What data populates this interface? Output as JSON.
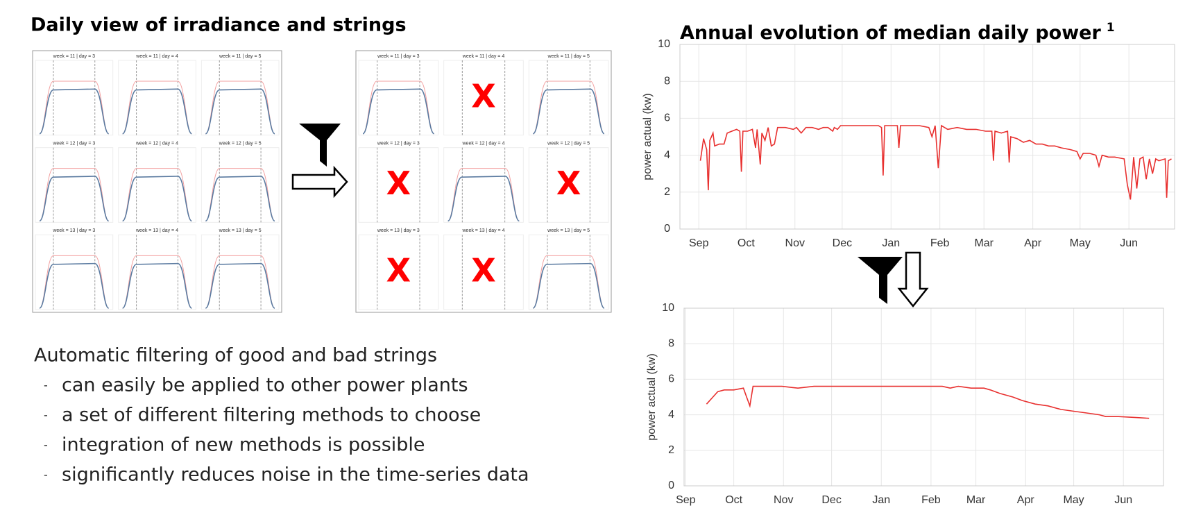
{
  "daily_view": {
    "title": "Daily view of irradiance and strings",
    "panels": [
      {
        "label": "week = 11 | day = 3"
      },
      {
        "label": "week = 11 | day = 4",
        "verdict": "X"
      },
      {
        "label": "week = 11 | day = 5"
      },
      {
        "label": "week = 12 | day = 3",
        "verdict": "X"
      },
      {
        "label": "week = 12 | day = 4"
      },
      {
        "label": "week = 12 | day = 5",
        "verdict": "X"
      },
      {
        "label": "week = 13 | day = 3",
        "verdict": "X"
      },
      {
        "label": "week = 13 | day = 4",
        "verdict": "X"
      },
      {
        "label": "week = 13 | day = 5"
      }
    ]
  },
  "summary": {
    "heading": "Automatic filtering of good and bad strings",
    "bullets": [
      "can easily be applied to other power plants",
      "a set of different filtering methods to choose",
      "integration of new methods is possible",
      "significantly reduces noise in the time-series data"
    ]
  },
  "chart_data": [
    {
      "type": "line",
      "title": "Annual evolution of median daily power",
      "title_note": "1",
      "ylabel": "power actual (kw)",
      "color": "#e8302f",
      "grid": true,
      "xlim": [
        -12,
        302
      ],
      "ylim": [
        0,
        10
      ],
      "yticks": [
        0,
        2,
        4,
        6,
        8,
        10
      ],
      "xticks": [
        {
          "value": 0,
          "label": "Sep"
        },
        {
          "value": 30,
          "label": "Oct"
        },
        {
          "value": 61,
          "label": "Nov"
        },
        {
          "value": 91,
          "label": "Dec"
        },
        {
          "value": 122,
          "label": "Jan"
        },
        {
          "value": 153,
          "label": "Feb"
        },
        {
          "value": 181,
          "label": "Mar"
        },
        {
          "value": 212,
          "label": "Apr"
        },
        {
          "value": 242,
          "label": "May"
        },
        {
          "value": 273,
          "label": "Jun"
        }
      ],
      "x": [
        1,
        3,
        5,
        6,
        7,
        9,
        10,
        13,
        16,
        18,
        21,
        24,
        26,
        27,
        28,
        31,
        34,
        36,
        37,
        39,
        40,
        42,
        44,
        46,
        48,
        50,
        55,
        60,
        62,
        65,
        68,
        72,
        76,
        79,
        82,
        85,
        86,
        88,
        90,
        94,
        98,
        102,
        106,
        110,
        114,
        116,
        117,
        118,
        122,
        126,
        127,
        128,
        134,
        140,
        146,
        148,
        150,
        152,
        154,
        158,
        164,
        170,
        176,
        182,
        186,
        187,
        188,
        192,
        196,
        197,
        198,
        202,
        206,
        210,
        214,
        218,
        222,
        226,
        230,
        236,
        240,
        242,
        244,
        248,
        252,
        254,
        256,
        260,
        264,
        270,
        272,
        274,
        276,
        278,
        280,
        282,
        284,
        286,
        288,
        290,
        292,
        296,
        297,
        298,
        300
      ],
      "values": [
        3.7,
        4.9,
        4.3,
        2.1,
        4.8,
        5.2,
        4.5,
        4.6,
        4.6,
        5.2,
        5.3,
        5.4,
        5.3,
        3.1,
        5.3,
        5.3,
        5.4,
        4.4,
        5.4,
        3.5,
        5.2,
        4.8,
        5.5,
        4.5,
        4.6,
        5.5,
        5.5,
        5.4,
        5.5,
        5.2,
        5.5,
        5.5,
        5.4,
        5.5,
        5.5,
        5.3,
        5.5,
        5.4,
        5.6,
        5.6,
        5.6,
        5.6,
        5.6,
        5.6,
        5.6,
        5.5,
        2.9,
        5.6,
        5.6,
        5.6,
        4.4,
        5.6,
        5.6,
        5.6,
        5.5,
        5.0,
        5.6,
        3.3,
        5.6,
        5.4,
        5.5,
        5.4,
        5.4,
        5.3,
        5.3,
        3.7,
        5.3,
        5.2,
        5.3,
        3.6,
        5.0,
        4.9,
        4.7,
        4.8,
        4.6,
        4.6,
        4.5,
        4.5,
        4.4,
        4.3,
        4.2,
        3.8,
        4.1,
        4.1,
        4.0,
        3.4,
        4.0,
        3.9,
        3.9,
        3.8,
        2.4,
        1.6,
        3.9,
        2.2,
        3.8,
        3.9,
        2.7,
        3.8,
        3.0,
        3.8,
        3.7,
        3.8,
        1.7,
        3.7,
        3.8
      ]
    },
    {
      "type": "line",
      "ylabel": "power actual (kw)",
      "color": "#e8302f",
      "grid": true,
      "xlim": [
        -1,
        298
      ],
      "ylim": [
        0,
        10
      ],
      "yticks": [
        0,
        2,
        4,
        6,
        8,
        10
      ],
      "xticks": [
        {
          "value": 0,
          "label": "Sep"
        },
        {
          "value": 30,
          "label": "Oct"
        },
        {
          "value": 61,
          "label": "Nov"
        },
        {
          "value": 91,
          "label": "Dec"
        },
        {
          "value": 122,
          "label": "Jan"
        },
        {
          "value": 153,
          "label": "Feb"
        },
        {
          "value": 181,
          "label": "Mar"
        },
        {
          "value": 212,
          "label": "Apr"
        },
        {
          "value": 242,
          "label": "May"
        },
        {
          "value": 273,
          "label": "Jun"
        }
      ],
      "x": [
        13,
        17,
        20,
        24,
        30,
        36,
        38,
        40,
        42,
        50,
        60,
        70,
        80,
        90,
        100,
        110,
        120,
        130,
        140,
        150,
        160,
        165,
        170,
        178,
        186,
        190,
        196,
        204,
        210,
        218,
        226,
        234,
        242,
        250,
        258,
        262,
        270,
        280,
        289
      ],
      "values": [
        4.6,
        5.0,
        5.3,
        5.4,
        5.4,
        5.5,
        5.0,
        4.5,
        5.6,
        5.6,
        5.6,
        5.5,
        5.6,
        5.6,
        5.6,
        5.6,
        5.6,
        5.6,
        5.6,
        5.6,
        5.6,
        5.5,
        5.6,
        5.5,
        5.5,
        5.4,
        5.2,
        5.0,
        4.8,
        4.6,
        4.5,
        4.3,
        4.2,
        4.1,
        4.0,
        3.9,
        3.9,
        3.85,
        3.8
      ]
    }
  ]
}
